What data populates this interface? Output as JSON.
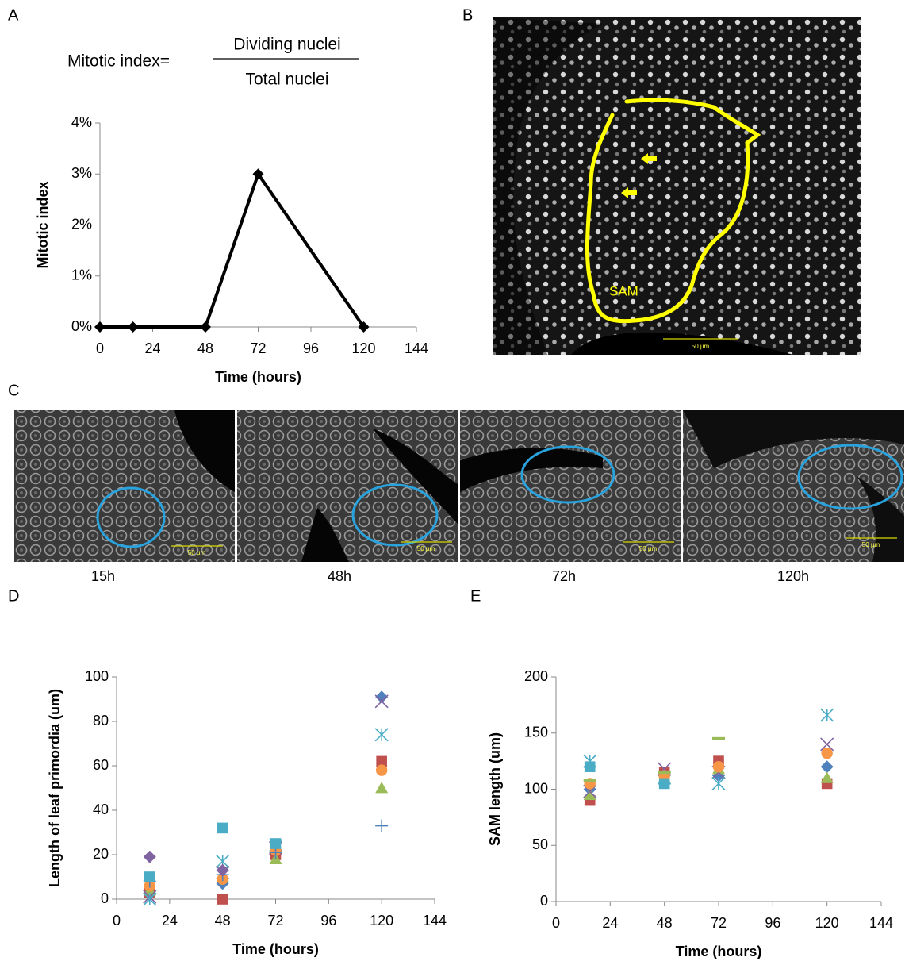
{
  "panels": [
    "A",
    "B",
    "C",
    "D",
    "E"
  ],
  "formula": {
    "lhs": "Mitotic index=",
    "numerator": "Dividing nuclei",
    "denominator": "Total nuclei"
  },
  "image_B": {
    "label": "SAM",
    "scale": "50 µm"
  },
  "images_C": [
    {
      "caption": "15h",
      "scale": "50 µm"
    },
    {
      "caption": "48h",
      "scale": "50 µm"
    },
    {
      "caption": "72h",
      "scale": "50 µm"
    },
    {
      "caption": "120h",
      "scale": "50 µm"
    }
  ],
  "chart_data": [
    {
      "type": "line",
      "y_label": "Mitotic index",
      "x_label": "Time (hours)",
      "x": [
        0,
        15,
        48,
        72,
        120
      ],
      "values": [
        0,
        0,
        0,
        3,
        0
      ],
      "color": "#000000",
      "marker": "diamond",
      "xlim": [
        0,
        144
      ],
      "xticks": [
        0,
        24,
        48,
        72,
        96,
        120,
        144
      ],
      "ylim": [
        0,
        4
      ],
      "yticks": [
        {
          "value": 0,
          "label": "0%"
        },
        {
          "value": 1,
          "label": "1%"
        },
        {
          "value": 2,
          "label": "2%"
        },
        {
          "value": 3,
          "label": "3%"
        },
        {
          "value": 4,
          "label": "4%"
        }
      ]
    },
    {
      "type": "scatter",
      "y_label": "Length of leaf primordia (um)",
      "x_label": "Time (hours)",
      "xlim": [
        0,
        144
      ],
      "xticks": [
        0,
        24,
        48,
        72,
        96,
        120,
        144
      ],
      "ylim": [
        0,
        100
      ],
      "yticks": [
        0,
        20,
        40,
        60,
        80,
        100
      ],
      "series": [
        {
          "color": "#4f81bd",
          "marker": "diamond",
          "x": [
            15,
            48,
            72,
            120
          ],
          "values": [
            2,
            7,
            22,
            91
          ]
        },
        {
          "color": "#c0504d",
          "marker": "square",
          "x": [
            15,
            48,
            72,
            120
          ],
          "values": [
            3,
            0,
            20,
            62
          ]
        },
        {
          "color": "#9bbb59",
          "marker": "triangle",
          "x": [
            15,
            48,
            72,
            120
          ],
          "values": [
            4,
            10,
            18,
            50
          ]
        },
        {
          "color": "#8064a2",
          "marker": "x",
          "x": [
            15,
            48,
            72,
            120
          ],
          "values": [
            1,
            12,
            23,
            89
          ]
        },
        {
          "color": "#4bacc6",
          "marker": "star",
          "x": [
            15,
            48,
            72,
            120
          ],
          "values": [
            0,
            17,
            24,
            74
          ]
        },
        {
          "color": "#f79646",
          "marker": "circle",
          "x": [
            15,
            48,
            72,
            120
          ],
          "values": [
            6,
            9,
            22,
            58
          ]
        },
        {
          "color": "#4f81bd",
          "marker": "plus",
          "x": [
            15,
            48,
            72,
            120
          ],
          "values": [
            8,
            11,
            21,
            33
          ]
        },
        {
          "color": "#8064a2",
          "marker": "diamond",
          "x": [
            15,
            48
          ],
          "values": [
            19,
            13
          ]
        },
        {
          "color": "#4bacc6",
          "marker": "square",
          "x": [
            15,
            48,
            72
          ],
          "values": [
            10,
            32,
            25
          ]
        }
      ]
    },
    {
      "type": "scatter",
      "y_label": "SAM length (um)",
      "x_label": "Time (hours)",
      "xlim": [
        0,
        144
      ],
      "xticks": [
        0,
        24,
        48,
        72,
        96,
        120,
        144
      ],
      "ylim": [
        0,
        200
      ],
      "yticks": [
        0,
        50,
        100,
        150,
        200
      ],
      "series": [
        {
          "color": "#4f81bd",
          "marker": "diamond",
          "x": [
            15,
            48,
            72,
            120
          ],
          "values": [
            100,
            112,
            112,
            120
          ]
        },
        {
          "color": "#c0504d",
          "marker": "square",
          "x": [
            15,
            48,
            72,
            120
          ],
          "values": [
            90,
            115,
            125,
            105
          ]
        },
        {
          "color": "#9bbb59",
          "marker": "triangle",
          "x": [
            15,
            48,
            72,
            120
          ],
          "values": [
            95,
            110,
            118,
            110
          ]
        },
        {
          "color": "#8064a2",
          "marker": "x",
          "x": [
            15,
            48,
            72,
            120
          ],
          "values": [
            98,
            118,
            115,
            140
          ]
        },
        {
          "color": "#4bacc6",
          "marker": "star",
          "x": [
            15,
            48,
            72,
            120
          ],
          "values": [
            125,
            110,
            105,
            166
          ]
        },
        {
          "color": "#f79646",
          "marker": "circle",
          "x": [
            15,
            48,
            72,
            120
          ],
          "values": [
            105,
            112,
            120,
            132
          ]
        },
        {
          "color": "#9bbb59",
          "marker": "dash",
          "x": [
            15,
            48,
            72
          ],
          "values": [
            108,
            115,
            145
          ]
        },
        {
          "color": "#4bacc6",
          "marker": "square",
          "x": [
            15,
            48
          ],
          "values": [
            120,
            105
          ]
        }
      ]
    }
  ]
}
